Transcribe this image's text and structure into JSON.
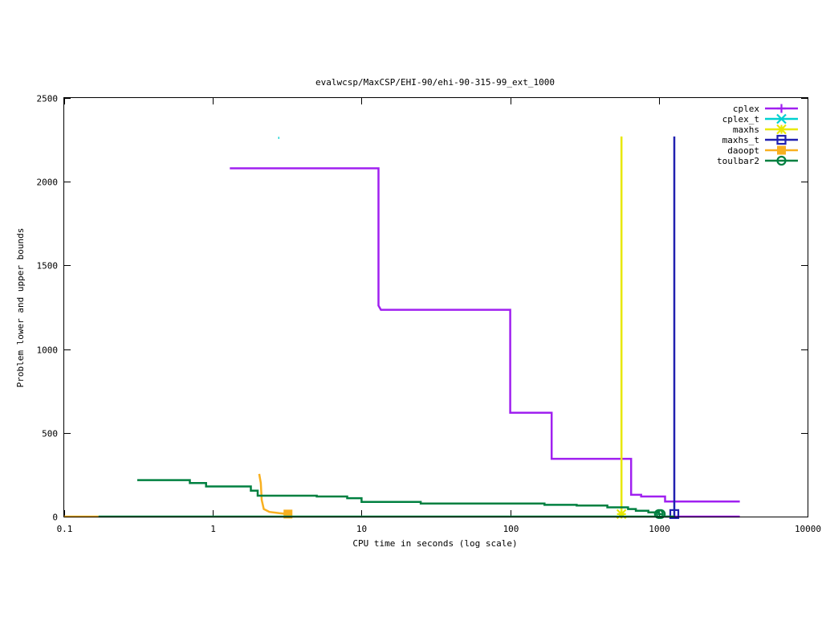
{
  "chart_data": {
    "type": "line",
    "title": "evalwcsp/MaxCSP/EHI-90/ehi-90-315-99_ext_1000",
    "xlabel": "CPU time in seconds (log scale)",
    "ylabel": "Problem lower and upper bounds",
    "xscale": "log",
    "xlim": [
      0.1,
      10000
    ],
    "ylim": [
      0,
      2500
    ],
    "grid": false,
    "legend_position": "top-right",
    "x_ticks": [
      {
        "value": 0.1,
        "label": "0.1"
      },
      {
        "value": 1,
        "label": "1"
      },
      {
        "value": 10,
        "label": "10"
      },
      {
        "value": 100,
        "label": "100"
      },
      {
        "value": 1000,
        "label": "1000"
      },
      {
        "value": 10000,
        "label": "10000"
      }
    ],
    "y_ticks": [
      {
        "value": 0,
        "label": "0"
      },
      {
        "value": 500,
        "label": "500"
      },
      {
        "value": 1000,
        "label": "1000"
      },
      {
        "value": 1500,
        "label": "1500"
      },
      {
        "value": 2000,
        "label": "2000"
      },
      {
        "value": 2500,
        "label": "2500"
      }
    ],
    "series": [
      {
        "name": "cplex",
        "color": "#a020f0",
        "marker": "plus",
        "upper": [
          [
            1.3,
            2080
          ],
          [
            13,
            2080
          ],
          [
            13,
            1260
          ],
          [
            13.5,
            1235
          ],
          [
            100,
            1235
          ],
          [
            100,
            620
          ],
          [
            190,
            620
          ],
          [
            190,
            345
          ],
          [
            650,
            345
          ],
          [
            650,
            130
          ],
          [
            760,
            130
          ],
          [
            760,
            120
          ],
          [
            1100,
            120
          ],
          [
            1100,
            90
          ],
          [
            3500,
            90
          ]
        ],
        "lower": [
          [
            1100,
            0
          ],
          [
            3500,
            0
          ]
        ],
        "markers": []
      },
      {
        "name": "cplex_t",
        "color": "#00d0d0",
        "marker": "cross",
        "upper": [
          [
            2.75,
            2262
          ],
          [
            2.8,
            2262
          ]
        ],
        "lower": [],
        "markers": []
      },
      {
        "name": "maxhs",
        "color": "#e8e800",
        "marker": "star",
        "upper": [
          [
            560,
            2270
          ],
          [
            560,
            0
          ]
        ],
        "lower": [
          [
            560,
            0
          ]
        ],
        "markers": [
          [
            560,
            15
          ]
        ]
      },
      {
        "name": "maxhs_t",
        "color": "#2020b0",
        "marker": "square",
        "upper": [
          [
            1270,
            2270
          ],
          [
            1270,
            0
          ]
        ],
        "lower": [
          [
            1270,
            0
          ]
        ],
        "markers": [
          [
            1270,
            15
          ]
        ]
      },
      {
        "name": "daoopt",
        "color": "#f8b020",
        "marker": "filled-square",
        "upper": [
          [
            2.05,
            255
          ],
          [
            2.1,
            200
          ],
          [
            2.13,
            100
          ],
          [
            2.2,
            45
          ],
          [
            2.4,
            28
          ],
          [
            2.8,
            20
          ],
          [
            3.2,
            15
          ]
        ],
        "lower": [
          [
            0.1,
            0
          ],
          [
            0.17,
            0
          ]
        ],
        "markers": [
          [
            3.2,
            15
          ]
        ]
      },
      {
        "name": "toulbar2",
        "color": "#008040",
        "marker": "circle",
        "upper": [
          [
            0.31,
            218
          ],
          [
            0.7,
            218
          ],
          [
            0.7,
            200
          ],
          [
            0.9,
            200
          ],
          [
            0.9,
            180
          ],
          [
            1.8,
            180
          ],
          [
            1.8,
            155
          ],
          [
            2.0,
            155
          ],
          [
            2.0,
            125
          ],
          [
            5,
            125
          ],
          [
            5,
            120
          ],
          [
            8,
            120
          ],
          [
            8,
            110
          ],
          [
            10,
            110
          ],
          [
            10,
            88
          ],
          [
            25,
            88
          ],
          [
            25,
            78
          ],
          [
            170,
            78
          ],
          [
            170,
            70
          ],
          [
            280,
            70
          ],
          [
            280,
            66
          ],
          [
            450,
            66
          ],
          [
            450,
            55
          ],
          [
            620,
            55
          ],
          [
            620,
            45
          ],
          [
            700,
            45
          ],
          [
            700,
            35
          ],
          [
            850,
            35
          ],
          [
            850,
            25
          ],
          [
            1000,
            25
          ],
          [
            1000,
            15
          ],
          [
            1050,
            15
          ]
        ],
        "lower": [
          [
            0.17,
            0
          ],
          [
            1270,
            0
          ]
        ],
        "markers": [
          [
            1000,
            15
          ],
          [
            1030,
            15
          ]
        ]
      }
    ]
  }
}
